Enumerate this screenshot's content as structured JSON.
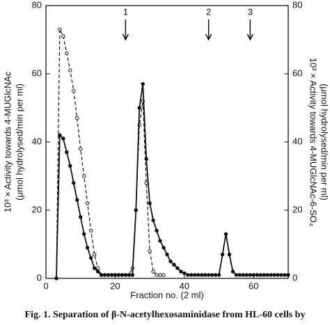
{
  "chart_data": {
    "type": "line",
    "x": [
      3,
      4,
      5,
      6,
      7,
      8,
      9,
      10,
      11,
      12,
      13,
      14,
      15,
      16,
      17,
      18,
      19,
      20,
      21,
      22,
      23,
      24,
      25,
      26,
      27,
      28,
      29,
      30,
      31,
      32,
      33,
      34,
      35,
      36,
      37,
      38,
      39,
      40,
      41,
      42,
      43,
      44,
      45,
      46,
      47,
      48,
      49,
      50,
      51,
      52,
      53,
      54,
      55,
      56,
      57,
      58,
      59,
      60,
      61,
      62,
      63,
      64,
      65,
      66,
      67,
      68,
      69,
      70
    ],
    "series": [
      {
        "axis": "y",
        "color": "#111111",
        "dashed": true,
        "marker": "open",
        "values": [
          0,
          73,
          71,
          66,
          61,
          55,
          47,
          38,
          30,
          22,
          14,
          7,
          3,
          1,
          1,
          1,
          1,
          1,
          1,
          1,
          1,
          1,
          3,
          20,
          45,
          52,
          28,
          8,
          2,
          1,
          1,
          1,
          null,
          null,
          null,
          null,
          null,
          null,
          null,
          null,
          null,
          null,
          null,
          null,
          null,
          null,
          null,
          null,
          null,
          null,
          null,
          null,
          null,
          null,
          null,
          null,
          null,
          null,
          null,
          null,
          null,
          null,
          null,
          null,
          null,
          null,
          null,
          null
        ]
      },
      {
        "axis": "y2",
        "color": "#111111",
        "dashed": false,
        "marker": "filled",
        "values": [
          0,
          42,
          41,
          37,
          33,
          28,
          23,
          18,
          13,
          9,
          6,
          3,
          2,
          1,
          1,
          1,
          1,
          1,
          1,
          1,
          1,
          1,
          1,
          20,
          50,
          57,
          35,
          22,
          17,
          14,
          11,
          9,
          7,
          5,
          4,
          3,
          2,
          1.5,
          1,
          1,
          1,
          1,
          1,
          1,
          1,
          1,
          1,
          1,
          7,
          13,
          7,
          2,
          1,
          1,
          1,
          1,
          1,
          1,
          1,
          1,
          1,
          1,
          1,
          1,
          1,
          1,
          1,
          1
        ]
      }
    ],
    "xlim": [
      0,
      70
    ],
    "xticks": [
      0,
      20,
      40,
      60
    ],
    "ylim": [
      0,
      80
    ],
    "yticks": [
      0,
      20,
      40,
      60,
      80
    ],
    "y2lim": [
      0,
      80
    ],
    "y2ticks": [
      0,
      20,
      40,
      60,
      80
    ],
    "xlabel": "Fraction no. (2 ml)",
    "ylabel": [
      "10³ × Activity towards 4-MUGlcNAc",
      "(μmol hydrolysed/min per ml)"
    ],
    "y2label": [
      "10³ × Activity towards 4-MUGlcNAc-6-SO₄",
      "(μmol hydrolysed/min per ml)"
    ],
    "annotations": [
      {
        "label": "1",
        "x": 23
      },
      {
        "label": "2",
        "x": 47
      },
      {
        "label": "3",
        "x": 59
      }
    ],
    "caption": "Fig. 1. Separation of β-N-acetylhexosaminidase from HL-60 cells by"
  }
}
